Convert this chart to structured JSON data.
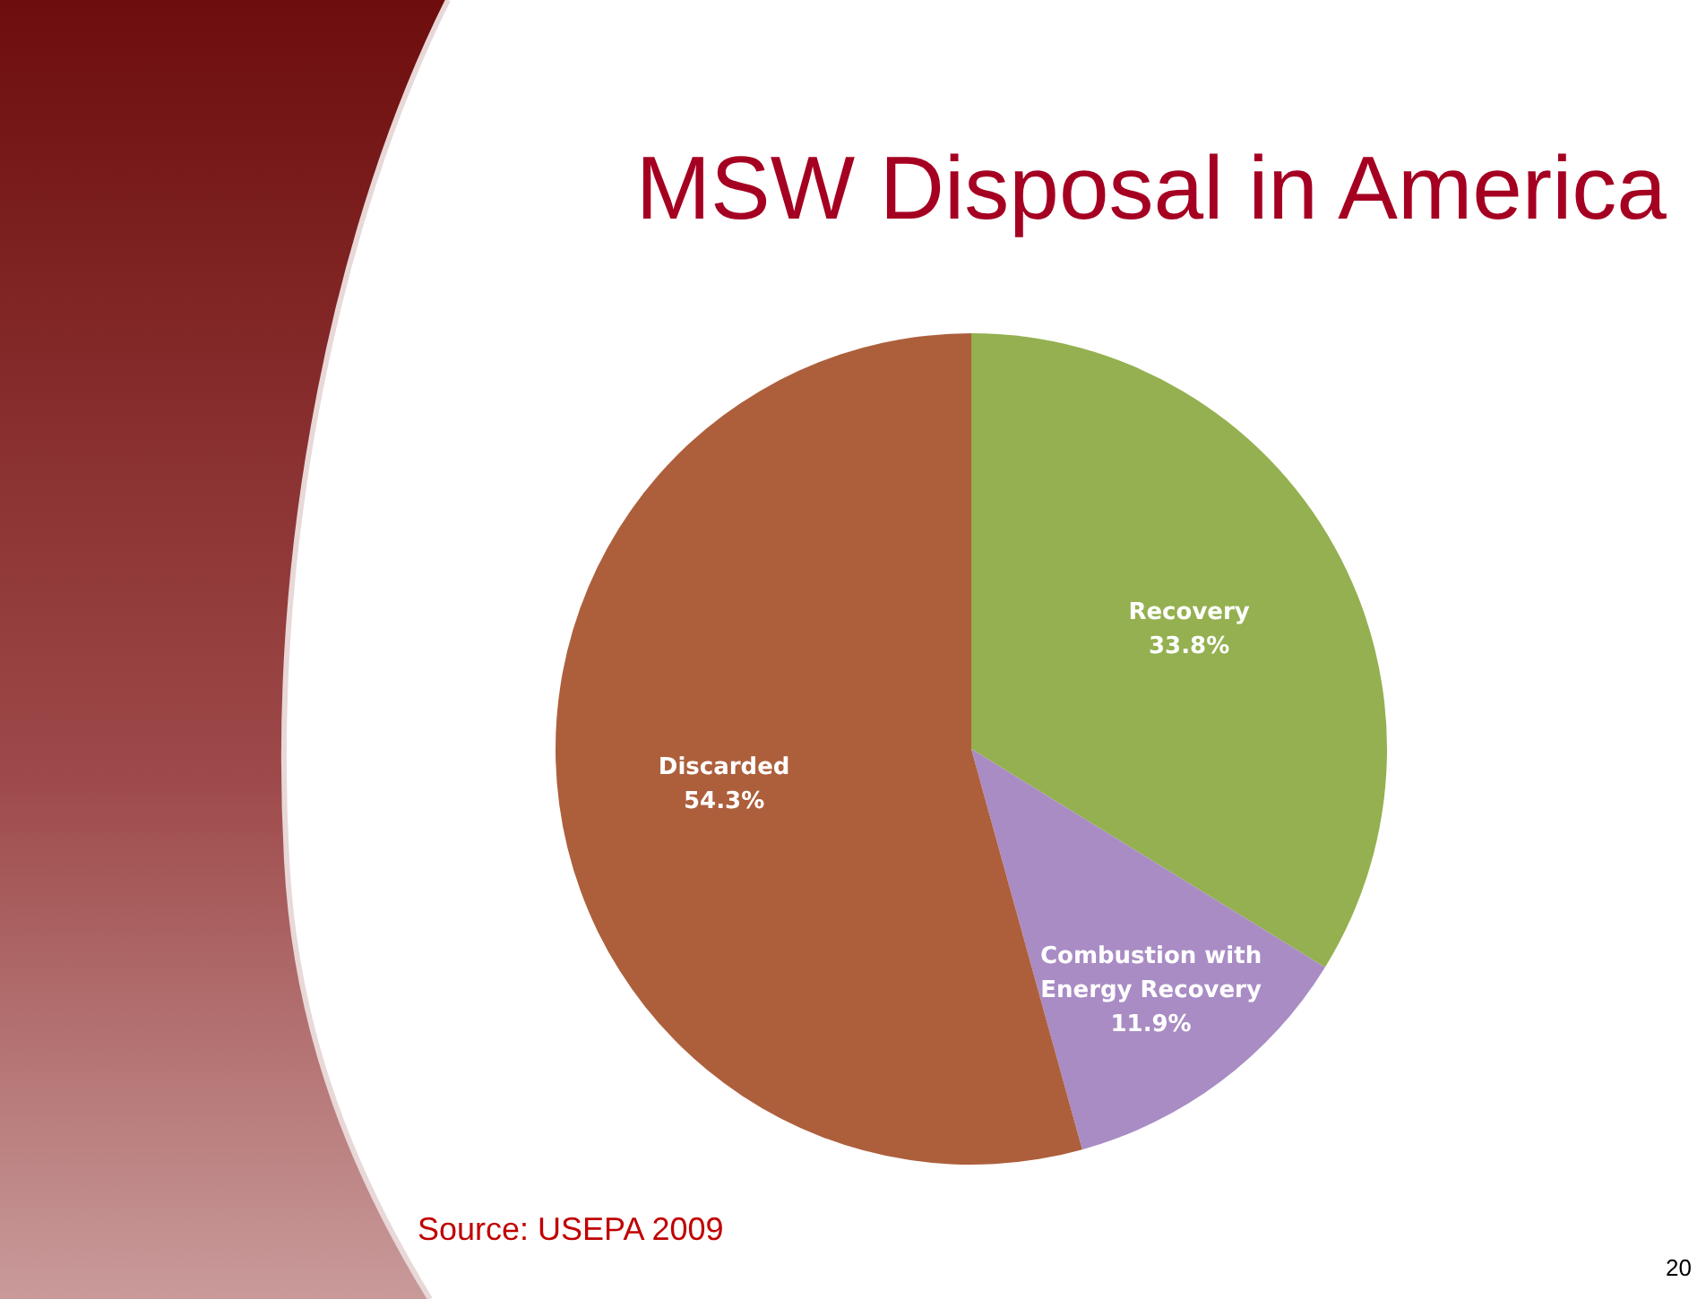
{
  "chart_data": {
    "type": "pie",
    "title": "MSW Disposal in America",
    "categories": [
      "Recovery",
      "Combustion with Energy Recovery",
      "Discarded"
    ],
    "values": [
      33.8,
      11.9,
      54.3
    ],
    "colors": [
      "#94b050",
      "#a98cc4",
      "#ad5f3c"
    ],
    "value_labels": [
      "33.8%",
      "11.9%",
      "54.3%"
    ],
    "annotations": [
      "Source: USEPA 2009",
      "20"
    ]
  }
}
